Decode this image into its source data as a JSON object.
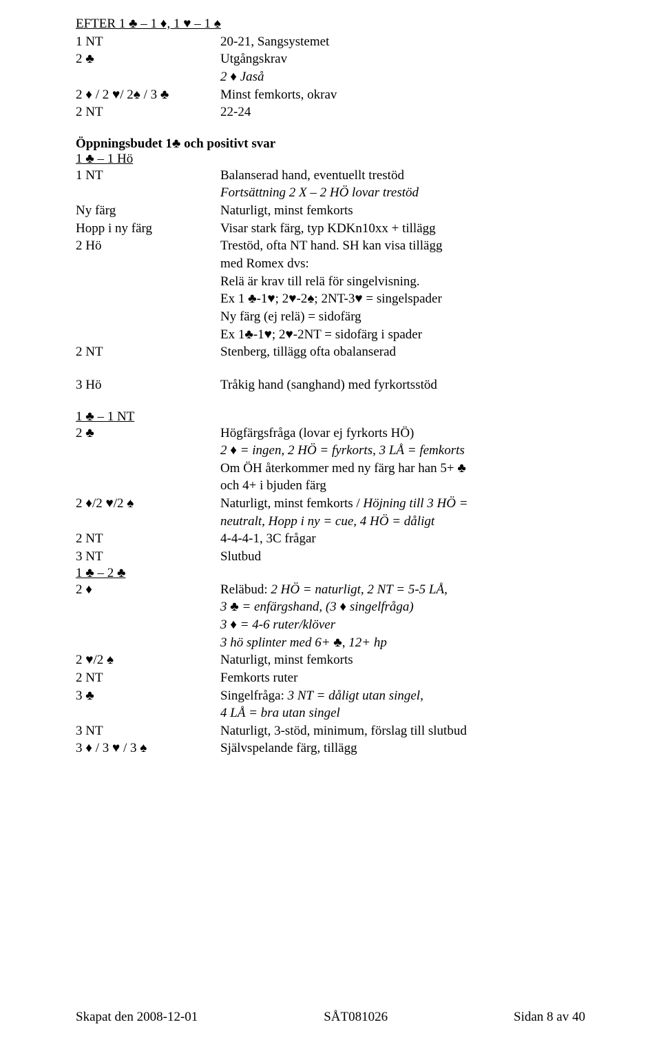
{
  "font": {
    "family": "Times New Roman",
    "size_pt": 14,
    "color": "#000000"
  },
  "suits": {
    "club": "♣",
    "diamond": "♦",
    "heart": "♥",
    "spade": "♠"
  },
  "header": {
    "title_parts": [
      "EFTER 1 ♣ – 1 ♦, 1 ♥ – 1 ♠"
    ]
  },
  "block1": {
    "rows": [
      {
        "l": "1 NT",
        "r": "20-21, Sangsystemet"
      },
      {
        "l": "2 ♣",
        "r": "Utgångskrav"
      },
      {
        "l": "",
        "r_italic": "2 ♦ Jaså"
      },
      {
        "l": "2 ♦ / 2 ♥/ 2♠ / 3 ♣",
        "r": "Minst femkorts, okrav"
      },
      {
        "l": "2 NT",
        "r": "22-24"
      }
    ]
  },
  "section2": {
    "heading": "Öppningsbudet 1♣ och positivt svar",
    "sub": "1 ♣ – 1 Hö",
    "rows": [
      {
        "l": "1 NT",
        "r": "Balanserad hand, eventuellt trestöd"
      },
      {
        "l": "",
        "r_italic": "Fortsättning 2 X – 2 HÖ lovar trestöd"
      },
      {
        "l": "Ny färg",
        "r": "Naturligt, minst femkorts"
      },
      {
        "l": "Hopp i ny färg",
        "r": "Visar stark färg, typ KDKn10xx + tillägg"
      },
      {
        "l": "2 Hö",
        "r": "Trestöd, ofta NT hand. SH kan visa tillägg"
      },
      {
        "l": "",
        "r": "med Romex dvs:"
      },
      {
        "l": "",
        "r": "Relä är krav till relä för singelvisning."
      },
      {
        "l": "",
        "r": "Ex 1 ♣-1♥; 2♥-2♠; 2NT-3♥ = singelspader"
      },
      {
        "l": "",
        "r": "Ny färg (ej relä) = sidofärg"
      },
      {
        "l": "",
        "r": "Ex 1♣-1♥; 2♥-2NT = sidofärg i spader"
      },
      {
        "l": "2 NT",
        "r": "Stenberg, tillägg ofta obalanserad"
      }
    ],
    "rows2": [
      {
        "l": "3 Hö",
        "r": "Tråkig hand (sanghand) med fyrkortsstöd"
      }
    ]
  },
  "section3": {
    "sub": "1 ♣ – 1 NT",
    "rows": [
      {
        "l": "2 ♣",
        "r": "Högfärgsfråga (lovar ej fyrkorts HÖ)"
      },
      {
        "l": "",
        "r_italic": "2 ♦ = ingen, 2 HÖ = fyrkorts, 3 LÅ = femkorts"
      },
      {
        "l": "",
        "r": "Om ÖH återkommer med ny färg har han 5+ ♣"
      },
      {
        "l": "",
        "r": "och 4+ i bjuden färg"
      },
      {
        "l": "2 ♦/2 ♥/2 ♠",
        "r_mixed": [
          {
            "t": "Naturligt, minst femkorts / ",
            "i": false
          },
          {
            "t": "Höjning till 3 HÖ =",
            "i": true
          }
        ]
      },
      {
        "l": "",
        "r_italic": "neutralt, Hopp i ny = cue, 4 HÖ = dåligt"
      },
      {
        "l": "2 NT",
        "r": "4-4-4-1, 3C frågar"
      },
      {
        "l": "3 NT",
        "r": "Slutbud"
      }
    ]
  },
  "section4": {
    "sub": "1 ♣ – 2 ♣",
    "rows": [
      {
        "l": "2 ♦",
        "r_mixed": [
          {
            "t": "Reläbud: ",
            "i": false
          },
          {
            "t": "2 HÖ = naturligt, 2 NT = 5-5 LÅ,",
            "i": true
          }
        ]
      },
      {
        "l": "",
        "r_italic": "3 ♣ = enfärgshand, (3 ♦ singelfråga)"
      },
      {
        "l": "",
        "r_italic": "3 ♦ = 4-6 ruter/klöver"
      },
      {
        "l": "",
        "r_italic": "3 hö splinter med 6+ ♣, 12+ hp"
      },
      {
        "l": "2 ♥/2 ♠",
        "r": "Naturligt, minst femkorts"
      },
      {
        "l": "2 NT",
        "r": "Femkorts ruter"
      },
      {
        "l": "3 ♣",
        "r_mixed": [
          {
            "t": "Singelfråga:  ",
            "i": false
          },
          {
            "t": "3 NT = dåligt utan singel,",
            "i": true
          }
        ]
      },
      {
        "l": "",
        "r_italic": "4 LÅ = bra utan singel"
      },
      {
        "l": "3 NT",
        "r": "Naturligt, 3-stöd, minimum, förslag till slutbud"
      },
      {
        "l": "3 ♦ / 3 ♥ / 3 ♠",
        "r": "Självspelande färg, tillägg"
      }
    ]
  },
  "footer": {
    "left": "Skapat den 2008-12-01",
    "center": "SÅT081026",
    "right": "Sidan 8 av 40"
  }
}
